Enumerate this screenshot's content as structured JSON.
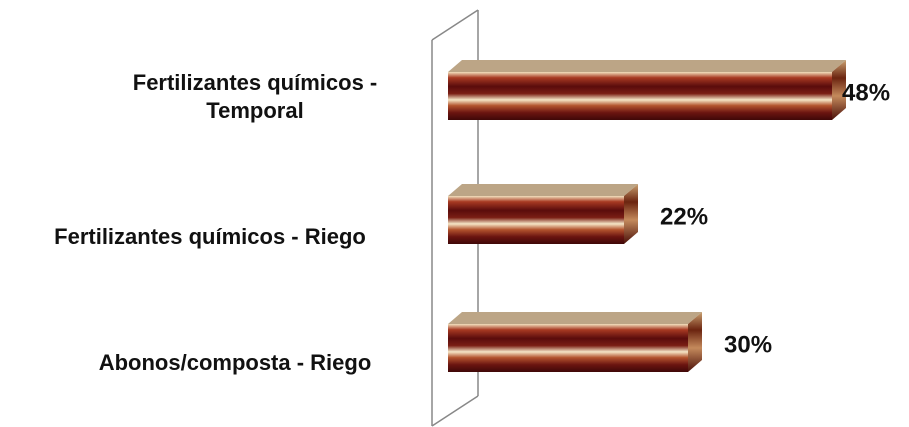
{
  "chart_data": {
    "type": "bar",
    "orientation": "horizontal",
    "style": "3d-cylinder",
    "categories": [
      [
        "Fertilizantes químicos -",
        "Temporal"
      ],
      [
        "Fertilizantes químicos - Riego"
      ],
      [
        "Abonos/composta - Riego"
      ]
    ],
    "values": [
      48,
      22,
      30
    ],
    "data_labels": [
      "48%",
      "22%",
      "30%"
    ],
    "xlim": [
      0,
      50
    ],
    "grid": false,
    "legend": "none",
    "colors": {
      "bar_dark": "#5a0c0c",
      "bar_mid": "#9a2a1c",
      "bar_light": "#f3e3c2",
      "bar_top": "#bca586",
      "bar_side": "#6b2410",
      "wall": "#888888"
    }
  }
}
